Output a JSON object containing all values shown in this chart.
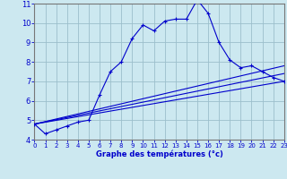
{
  "xlabel": "Graphe des températures (°c)",
  "bg_color": "#cce8f0",
  "grid_color": "#9bbfcc",
  "line_color": "#0000cc",
  "xlim": [
    0,
    23
  ],
  "ylim": [
    4,
    11
  ],
  "yticks": [
    4,
    5,
    6,
    7,
    8,
    9,
    10,
    11
  ],
  "xticks": [
    0,
    1,
    2,
    3,
    4,
    5,
    6,
    7,
    8,
    9,
    10,
    11,
    12,
    13,
    14,
    15,
    16,
    17,
    18,
    19,
    20,
    21,
    22,
    23
  ],
  "series": [
    {
      "x": [
        0,
        1,
        2,
        3,
        4,
        5,
        6,
        7,
        8,
        9,
        10,
        11,
        12,
        13,
        14,
        15,
        16,
        17,
        18,
        19,
        20,
        21,
        22,
        23
      ],
      "y": [
        4.8,
        4.3,
        4.5,
        4.7,
        4.9,
        5.0,
        6.3,
        7.5,
        8.0,
        9.2,
        9.9,
        9.6,
        10.1,
        10.2,
        10.2,
        11.2,
        10.5,
        9.0,
        8.1,
        7.7,
        7.8,
        7.5,
        7.2,
        7.0
      ],
      "marker": true
    },
    {
      "x": [
        0,
        23
      ],
      "y": [
        4.8,
        7.0
      ],
      "marker": false
    },
    {
      "x": [
        0,
        23
      ],
      "y": [
        4.8,
        7.4
      ],
      "marker": false
    },
    {
      "x": [
        0,
        23
      ],
      "y": [
        4.8,
        7.8
      ],
      "marker": false
    }
  ]
}
